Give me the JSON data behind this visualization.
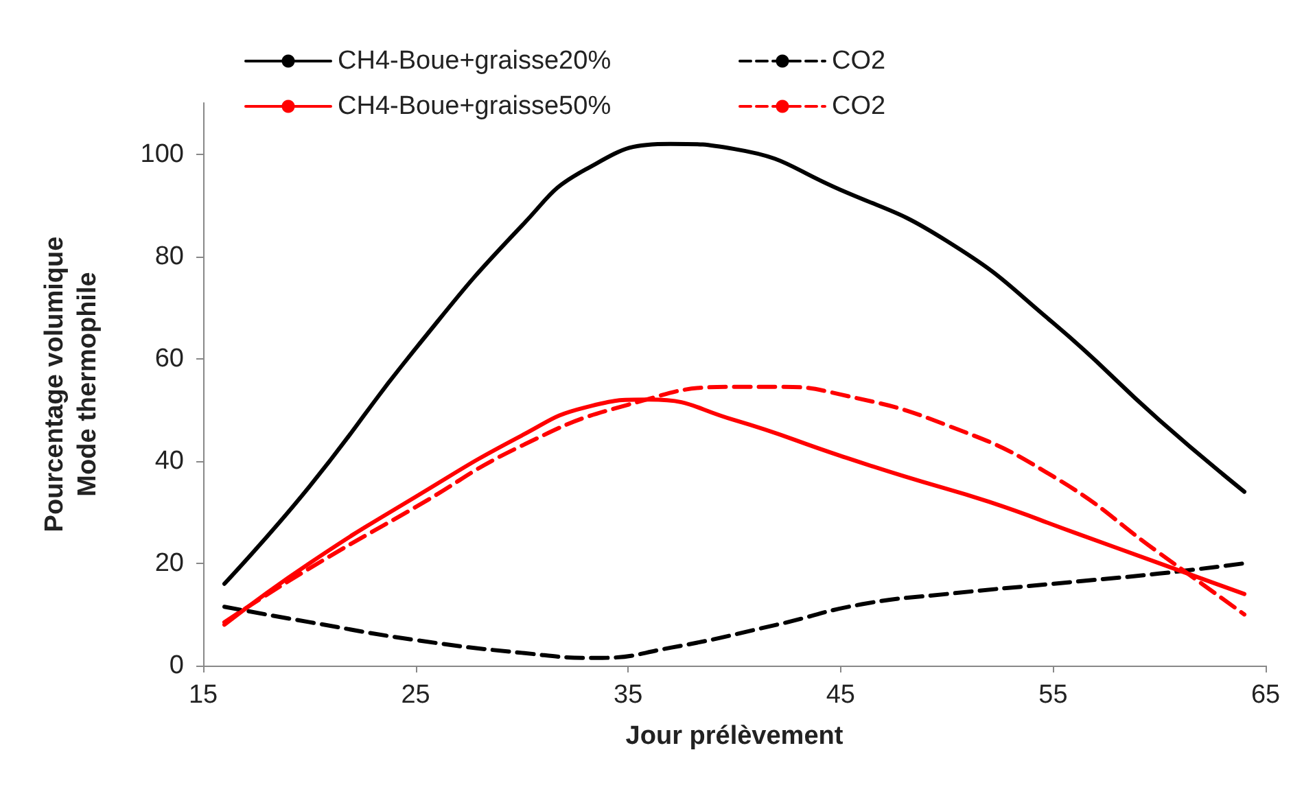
{
  "chart_data": {
    "type": "line",
    "xlabel": "Jour prélèvement",
    "ylabel": "Pourcentage volumique\nMode thermophile",
    "xlim": [
      15,
      65
    ],
    "xticks": [
      15,
      25,
      35,
      45,
      55,
      65
    ],
    "ylim": [
      0,
      110
    ],
    "yticks": [
      0,
      20,
      40,
      60,
      80,
      100
    ],
    "grid": false,
    "legend": "top",
    "marker": "none",
    "series": [
      {
        "name": "CH4-Boue+graisse20%",
        "color": "#000000",
        "line_style": "solid",
        "x": [
          16,
          20,
          25,
          30,
          33,
          37,
          40,
          45,
          50,
          55,
          60,
          64
        ],
        "values": [
          16,
          35,
          62,
          86,
          97,
          102,
          101,
          93,
          83,
          67,
          48,
          34
        ]
      },
      {
        "name": "CO2",
        "color": "#000000",
        "line_style": "dashed",
        "x": [
          16,
          20,
          25,
          30,
          33.5,
          37,
          42,
          46,
          50,
          55,
          60,
          64
        ],
        "values": [
          11.5,
          8.5,
          5,
          2.5,
          1.5,
          3.5,
          8,
          12,
          14,
          16,
          18,
          20
        ]
      },
      {
        "name": "CH4-Boue+graisse50%",
        "color": "#ff0000",
        "line_style": "solid",
        "x": [
          16,
          20,
          25,
          30,
          33,
          36,
          40,
          45,
          48,
          52,
          56,
          60,
          64
        ],
        "values": [
          8,
          20,
          33,
          45,
          50.5,
          52,
          48,
          41,
          37,
          32,
          26,
          20,
          14
        ]
      },
      {
        "name": "CO2",
        "color": "#ff0000",
        "line_style": "dashed",
        "x": [
          16,
          20,
          25,
          30,
          35,
          40,
          42,
          45,
          50,
          55,
          60,
          62,
          64
        ],
        "values": [
          8.5,
          19,
          31,
          43,
          51,
          54.5,
          54.5,
          53,
          47,
          37,
          22,
          16,
          10
        ]
      }
    ]
  }
}
